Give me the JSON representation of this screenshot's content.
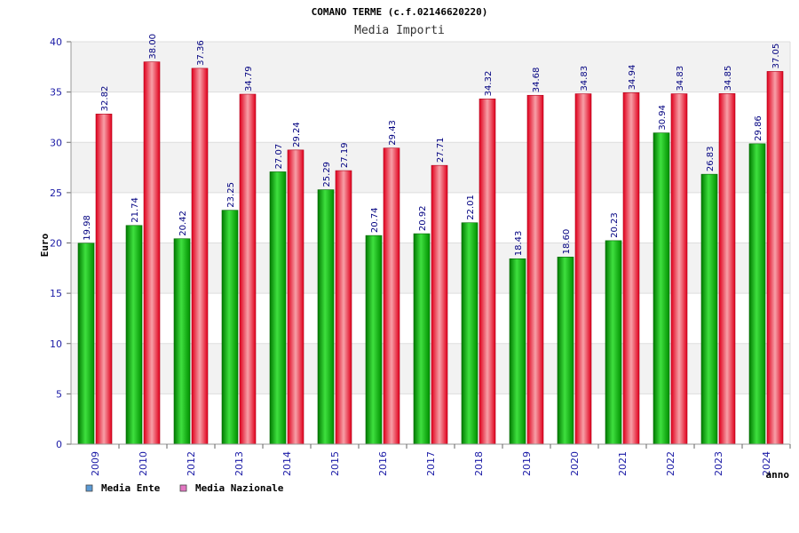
{
  "chart_data": {
    "type": "bar",
    "title": "COMANO TERME (c.f.02146620220)",
    "subtitle": "Media Importi",
    "xlabel": "anno",
    "ylabel": "Euro",
    "ylim": [
      0,
      40
    ],
    "yticks": [
      0,
      5,
      10,
      15,
      20,
      25,
      30,
      35,
      40
    ],
    "grid": true,
    "categories": [
      "2009",
      "2010",
      "2012",
      "2013",
      "2014",
      "2015",
      "2016",
      "2017",
      "2018",
      "2019",
      "2020",
      "2021",
      "2022",
      "2023",
      "2024"
    ],
    "series": [
      {
        "name": "Media Ente",
        "values": [
          19.98,
          21.74,
          20.42,
          23.25,
          27.07,
          25.29,
          20.74,
          20.92,
          22.01,
          18.43,
          18.6,
          20.23,
          30.94,
          26.83,
          29.86
        ],
        "labels": [
          "19.98",
          "21.74",
          "20.42",
          "23.25",
          "27.07",
          "25.29",
          "20.74",
          "20.92",
          "22.01",
          "18.43",
          "18.60",
          "20.23",
          "30.94",
          "26.83",
          "29.86"
        ],
        "bar_color": "#00a000",
        "legend_color": "#5b9bd5"
      },
      {
        "name": "Media Nazionale",
        "values": [
          32.82,
          38.0,
          37.36,
          34.79,
          29.24,
          27.19,
          29.43,
          27.71,
          34.32,
          34.68,
          34.83,
          34.94,
          34.83,
          34.85,
          37.05
        ],
        "labels": [
          "32.82",
          "38.00",
          "37.36",
          "34.79",
          "29.24",
          "27.19",
          "29.43",
          "27.71",
          "34.32",
          "34.68",
          "34.83",
          "34.94",
          "34.83",
          "34.85",
          "37.05"
        ],
        "bar_color": "#e8102a",
        "legend_color": "#e377c2"
      }
    ],
    "legend": "bottom-left"
  }
}
